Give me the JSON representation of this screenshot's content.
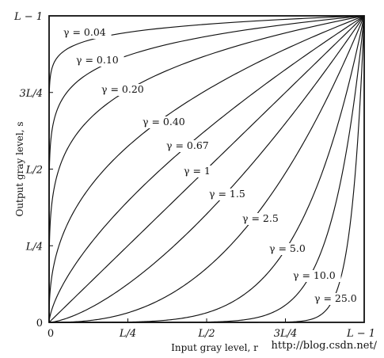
{
  "chart_data": {
    "type": "line",
    "xlabel": "Input gray level, r",
    "ylabel": "Output gray level, s",
    "x_ticks": [
      "0",
      "L/4",
      "L/2",
      "3L/4",
      "L − 1"
    ],
    "y_ticks": [
      "0",
      "L/4",
      "L/2",
      "3L/4",
      "L − 1"
    ],
    "xlim": [
      0,
      1
    ],
    "ylim": [
      0,
      1
    ],
    "grid": false,
    "series": [
      {
        "label": "γ = 0.04",
        "gamma": 0.04
      },
      {
        "label": "γ = 0.10",
        "gamma": 0.1
      },
      {
        "label": "γ = 0.20",
        "gamma": 0.2
      },
      {
        "label": "γ = 0.40",
        "gamma": 0.4
      },
      {
        "label": "γ = 0.67",
        "gamma": 0.67
      },
      {
        "label": "γ = 1",
        "gamma": 1
      },
      {
        "label": "γ = 1.5",
        "gamma": 1.5
      },
      {
        "label": "γ = 2.5",
        "gamma": 2.5
      },
      {
        "label": "γ = 5.0",
        "gamma": 5.0
      },
      {
        "label": "γ = 10.0",
        "gamma": 10.0
      },
      {
        "label": "γ = 25.0",
        "gamma": 25.0
      }
    ]
  },
  "watermark": "http://blog.csdn.net/"
}
